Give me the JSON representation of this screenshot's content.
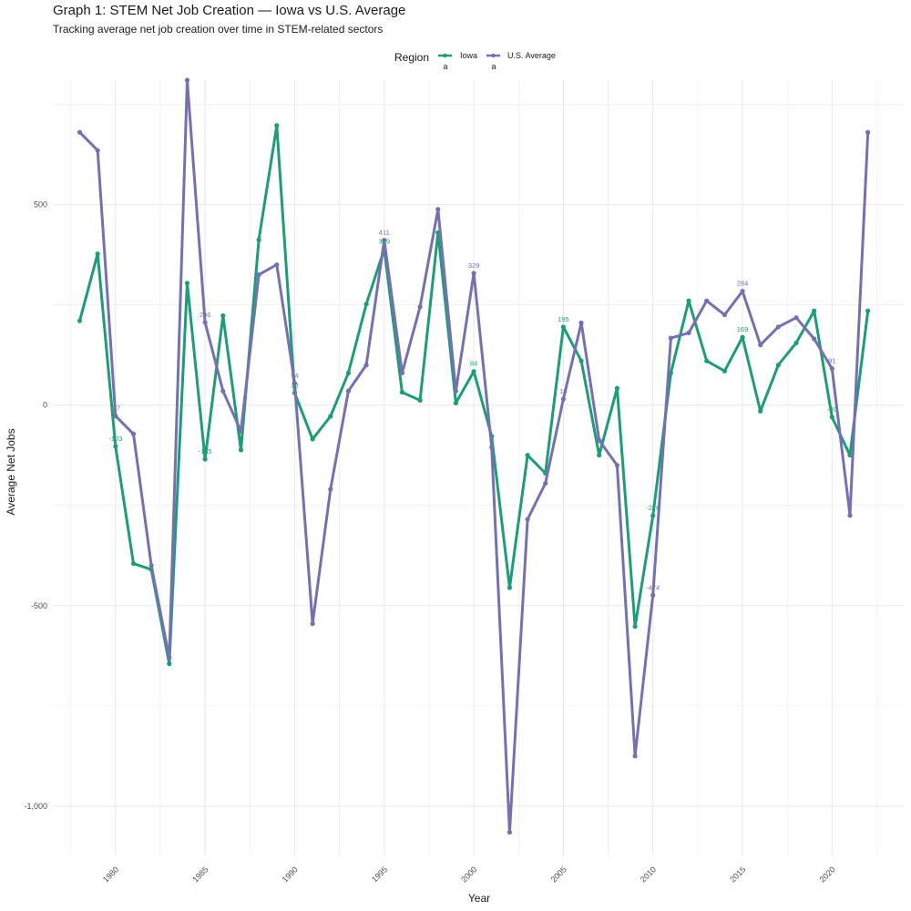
{
  "colors": {
    "iowa": "#1b9e77",
    "us": "#7570b3",
    "grid": "#ebebeb"
  },
  "chart_data": {
    "type": "line",
    "title": "Graph 1: STEM Net Job Creation — Iowa vs U.S. Average",
    "subtitle": "Tracking average net job creation over time in STEM-related sectors",
    "xlabel": "Year",
    "ylabel": "Average Net Jobs",
    "xlim": [
      1976.5,
      2024
    ],
    "ylim": [
      -1125,
      810
    ],
    "x_ticks": [
      1980,
      1985,
      1990,
      1995,
      2000,
      2005,
      2010,
      2015,
      2020
    ],
    "x_tick_labels": [
      "1980",
      "1985",
      "1990",
      "1995",
      "2000",
      "2005",
      "2010",
      "2015",
      "2020"
    ],
    "y_ticks": [
      -1000,
      -500,
      0,
      500
    ],
    "y_tick_labels": [
      "-1,000",
      "-500",
      "0",
      "500"
    ],
    "grid": true,
    "legend": {
      "title": "Region",
      "position": "top",
      "key_glyph": "a"
    },
    "x": [
      1978,
      1979,
      1980,
      1981,
      1982,
      1983,
      1984,
      1985,
      1986,
      1987,
      1988,
      1989,
      1990,
      1991,
      1992,
      1993,
      1994,
      1995,
      1996,
      1997,
      1998,
      1999,
      2000,
      2001,
      2002,
      2003,
      2004,
      2005,
      2006,
      2007,
      2008,
      2009,
      2010,
      2011,
      2012,
      2013,
      2014,
      2015,
      2016,
      2017,
      2018,
      2019,
      2020,
      2021,
      2022
    ],
    "series": [
      {
        "name": "Iowa",
        "color": "#1b9e77",
        "values": [
          210,
          377,
          -103,
          -395,
          -410,
          -645,
          304,
          -135,
          223,
          -112,
          412,
          697,
          30,
          -85,
          -28,
          80,
          252,
          389,
          32,
          12,
          430,
          5,
          84,
          -78,
          -455,
          -125,
          -170,
          195,
          110,
          -125,
          42,
          -552,
          -276,
          80,
          260,
          110,
          85,
          169,
          -15,
          100,
          155,
          235,
          -30,
          -125,
          235
        ]
      },
      {
        "name": "U.S. Average",
        "color": "#7570b3",
        "values": [
          680,
          635,
          -27,
          -72,
          -400,
          -630,
          810,
          206,
          35,
          -65,
          325,
          350,
          54,
          -545,
          -210,
          35,
          100,
          411,
          80,
          245,
          488,
          35,
          329,
          -105,
          -1065,
          -285,
          -195,
          15,
          205,
          -88,
          -150,
          -875,
          -474,
          167,
          180,
          260,
          225,
          284,
          150,
          195,
          218,
          165,
          91,
          -275,
          680
        ]
      }
    ],
    "annotations": [
      {
        "series": "Iowa",
        "x": 1980,
        "text": "-103"
      },
      {
        "series": "Iowa",
        "x": 1985,
        "text": "-135"
      },
      {
        "series": "Iowa",
        "x": 1990,
        "text": "30"
      },
      {
        "series": "Iowa",
        "x": 1995,
        "text": "389"
      },
      {
        "series": "Iowa",
        "x": 2000,
        "text": "84"
      },
      {
        "series": "Iowa",
        "x": 2005,
        "text": "195"
      },
      {
        "series": "Iowa",
        "x": 2010,
        "text": "-276"
      },
      {
        "series": "Iowa",
        "x": 2015,
        "text": "169"
      },
      {
        "series": "Iowa",
        "x": 2020,
        "text": "-30"
      },
      {
        "series": "U.S. Average",
        "x": 1980,
        "text": "-27"
      },
      {
        "series": "U.S. Average",
        "x": 1985,
        "text": "206"
      },
      {
        "series": "U.S. Average",
        "x": 1990,
        "text": "54"
      },
      {
        "series": "U.S. Average",
        "x": 1995,
        "text": "411"
      },
      {
        "series": "U.S. Average",
        "x": 2000,
        "text": "329"
      },
      {
        "series": "U.S. Average",
        "x": 2005,
        "text": "15"
      },
      {
        "series": "U.S. Average",
        "x": 2010,
        "text": "-474"
      },
      {
        "series": "U.S. Average",
        "x": 2015,
        "text": "284"
      },
      {
        "series": "U.S. Average",
        "x": 2020,
        "text": "91"
      }
    ]
  }
}
